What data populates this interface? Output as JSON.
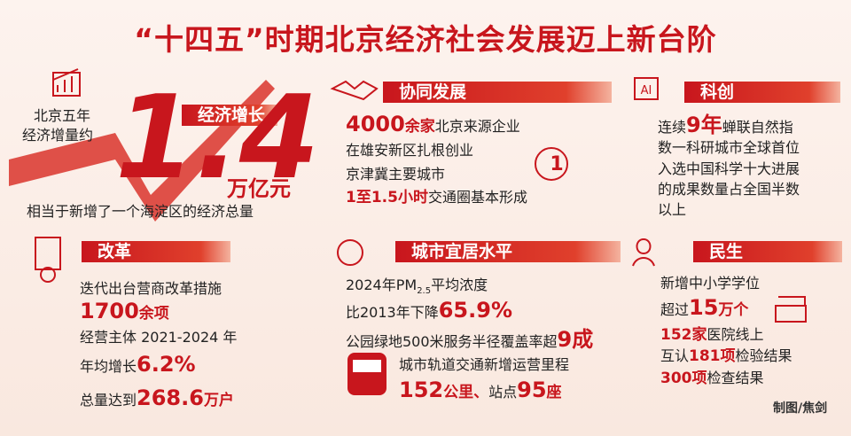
{
  "title": "“十四五”时期北京经济社会发展迈上新台阶",
  "growth": {
    "heading": "经济增长",
    "lead": [
      "北京五年",
      "经济增量约"
    ],
    "figure": "1.4",
    "unit": "万亿元",
    "note": "相当于新增了一个海淀区的经济总量"
  },
  "coordination": {
    "heading": "协同发展",
    "lines": [
      [
        {
          "text": "4000",
          "em": "big"
        },
        {
          "text": "余家",
          "em": "mid"
        },
        "北京来源企业"
      ],
      [
        "在雄安新区扎根创业"
      ],
      [
        "京津冀主要城市"
      ],
      [
        {
          "text": "1至1.5小时",
          "em": "mid"
        },
        "交通圈基本形成"
      ]
    ]
  },
  "innovation": {
    "heading": "科创",
    "lines": [
      [
        "连续",
        {
          "text": "9年",
          "em": "big"
        },
        "蝉联自然指"
      ],
      [
        "数一科研城市全球首位"
      ],
      [
        "入选中国科学十大进展"
      ],
      [
        "的成果数量占全国半数"
      ],
      [
        "以上"
      ]
    ]
  },
  "reform": {
    "heading": "改革",
    "lines": [
      [
        "迭代出台营商改革措施"
      ],
      [
        {
          "text": "1700",
          "em": "big"
        },
        {
          "text": "余项",
          "em": "mid"
        }
      ],
      [
        "经营主体 2021-2024 年"
      ],
      [
        "年均增长",
        {
          "text": "6.2%",
          "em": "big"
        }
      ],
      [
        "总量达到",
        {
          "text": "268.6",
          "em": "big"
        },
        {
          "text": "万户",
          "em": "mid"
        }
      ]
    ]
  },
  "livable": {
    "heading": "城市宜居水平",
    "lines": [
      [
        "2024年PM",
        {
          "text": "2.5",
          "em": "sub"
        },
        "平均浓度"
      ],
      [
        "比2013年下降",
        {
          "text": "65.9%",
          "em": "big"
        }
      ],
      [
        "公园绿地500米服务半径覆盖率超",
        {
          "text": "9成",
          "em": "big"
        }
      ],
      [
        "城市轨道交通新增运营里程"
      ],
      [
        {
          "text": "152",
          "em": "big"
        },
        {
          "text": "公里、",
          "em": "mid"
        },
        "站点",
        {
          "text": "95",
          "em": "big"
        },
        {
          "text": "座",
          "em": "mid"
        }
      ]
    ]
  },
  "welfare": {
    "heading": "民生",
    "lines": [
      [
        "新增中小学学位"
      ],
      [
        "超过",
        {
          "text": "15",
          "em": "big"
        },
        {
          "text": "万个",
          "em": "mid"
        }
      ],
      [
        {
          "text": "152家",
          "em": "mid"
        },
        "医院线上"
      ],
      [
        "互认",
        {
          "text": "181项",
          "em": "mid"
        },
        "检验结果"
      ],
      [
        {
          "text": "300项",
          "em": "mid"
        },
        "检查结果"
      ]
    ]
  },
  "credit": "制图/焦剑"
}
